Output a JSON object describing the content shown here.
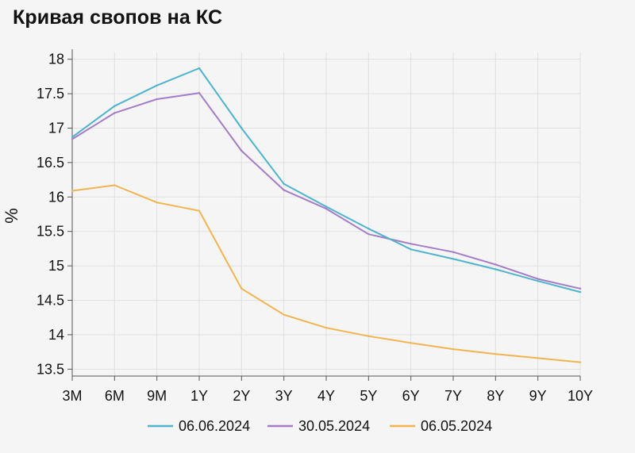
{
  "chart_data": {
    "type": "line",
    "title": "Кривая свопов на КС",
    "xlabel": "",
    "ylabel": "%",
    "categories": [
      "3M",
      "6M",
      "9M",
      "1Y",
      "2Y",
      "3Y",
      "4Y",
      "5Y",
      "6Y",
      "7Y",
      "8Y",
      "9Y",
      "10Y"
    ],
    "ylim": [
      13.4,
      18.1
    ],
    "yticks": [
      13.5,
      14,
      14.5,
      15,
      15.5,
      16,
      16.5,
      17,
      17.5,
      18
    ],
    "ytick_labels": [
      "13.5",
      "14",
      "14.5",
      "15",
      "15.5",
      "16",
      "16.5",
      "17",
      "17.5",
      "18"
    ],
    "grid": true,
    "legend_position": "bottom",
    "series": [
      {
        "name": "06.06.2024",
        "color": "#4eb3cc",
        "values": [
          16.87,
          17.32,
          17.62,
          17.87,
          17.0,
          16.19,
          15.86,
          15.54,
          15.24,
          15.1,
          14.95,
          14.78,
          14.62
        ]
      },
      {
        "name": "30.05.2024",
        "color": "#a57cc6",
        "values": [
          16.84,
          17.22,
          17.42,
          17.51,
          16.67,
          16.1,
          15.83,
          15.46,
          15.32,
          15.2,
          15.02,
          14.81,
          14.67
        ]
      },
      {
        "name": "06.05.2024",
        "color": "#f1b451",
        "values": [
          16.09,
          16.17,
          15.92,
          15.8,
          14.67,
          14.29,
          14.1,
          13.98,
          13.88,
          13.79,
          13.72,
          13.66,
          13.6
        ]
      }
    ]
  }
}
